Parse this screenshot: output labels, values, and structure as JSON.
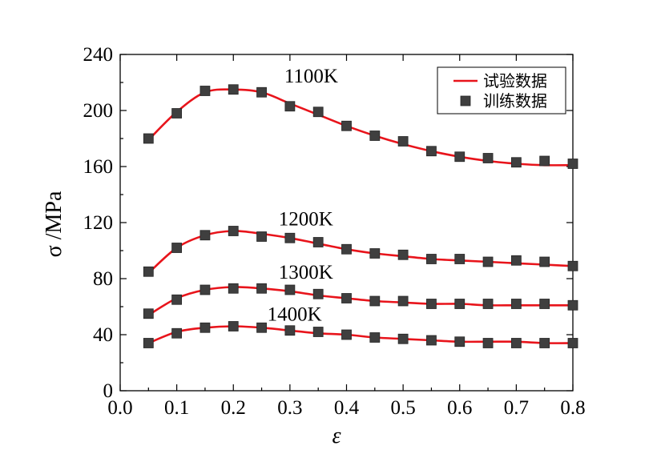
{
  "chart_data": {
    "type": "line",
    "xlabel": "ε",
    "ylabel": "σ /MPa",
    "xlim": [
      0.0,
      0.8
    ],
    "ylim": [
      0,
      240
    ],
    "xticks": [
      "0.0",
      "0.1",
      "0.2",
      "0.3",
      "0.4",
      "0.5",
      "0.6",
      "0.7",
      "0.8"
    ],
    "yticks": [
      "0",
      "40",
      "80",
      "120",
      "160",
      "200",
      "240"
    ],
    "grid": false,
    "legend_position": "top-right",
    "legend": {
      "line_label": "试验数据",
      "marker_label": "训练数据"
    },
    "x": [
      0.05,
      0.1,
      0.15,
      0.2,
      0.25,
      0.3,
      0.35,
      0.4,
      0.45,
      0.5,
      0.55,
      0.6,
      0.65,
      0.7,
      0.75,
      0.8
    ],
    "series": [
      {
        "label": "1100K",
        "line": [
          179,
          199,
          213,
          215,
          213,
          205,
          197,
          189,
          182,
          176,
          171,
          167,
          164,
          162,
          161,
          161
        ],
        "markers": [
          180,
          198,
          214,
          215,
          213,
          203,
          199,
          189,
          182,
          178,
          171,
          167,
          166,
          163,
          164,
          162
        ]
      },
      {
        "label": "1200K",
        "line": [
          84,
          102,
          111,
          114,
          112,
          109,
          105,
          101,
          98,
          96,
          94,
          93,
          92,
          91,
          90,
          89
        ],
        "markers": [
          85,
          102,
          111,
          114,
          110,
          109,
          106,
          101,
          98,
          97,
          94,
          94,
          92,
          93,
          92,
          89
        ]
      },
      {
        "label": "1300K",
        "line": [
          54,
          66,
          72,
          74,
          73,
          71,
          68,
          66,
          64,
          63,
          62,
          62,
          61,
          61,
          61,
          61
        ],
        "markers": [
          55,
          65,
          72,
          73,
          73,
          72,
          69,
          66,
          64,
          64,
          62,
          62,
          62,
          62,
          62,
          61
        ]
      },
      {
        "label": "1400K",
        "line": [
          34,
          42,
          45,
          46,
          45,
          43,
          41,
          40,
          38,
          37,
          36,
          35,
          35,
          35,
          34,
          34
        ],
        "markers": [
          34,
          41,
          45,
          46,
          45,
          43,
          42,
          40,
          38,
          37,
          36,
          35,
          34,
          34,
          34,
          34
        ]
      }
    ],
    "label_anchor_x": [
      0.29,
      0.28,
      0.28,
      0.26
    ],
    "label_anchor_y": [
      220,
      118,
      80,
      50
    ]
  }
}
